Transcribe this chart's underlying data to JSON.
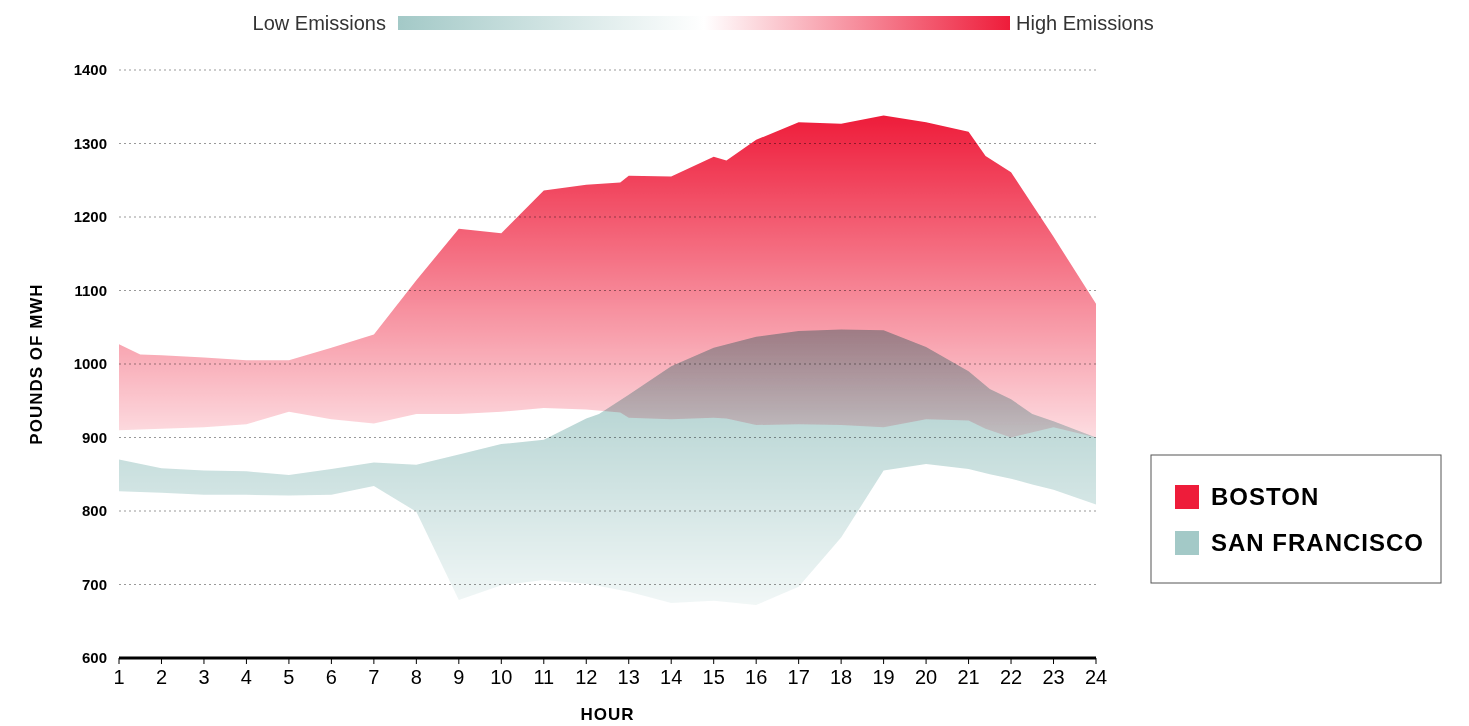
{
  "chart_data": {
    "type": "area",
    "xlabel": "HOUR",
    "ylabel": "POUNDS OF MWH",
    "xlim": [
      1,
      24
    ],
    "xticks": [
      1,
      2,
      3,
      4,
      5,
      6,
      7,
      8,
      9,
      10,
      11,
      12,
      13,
      14,
      15,
      16,
      17,
      18,
      19,
      20,
      21,
      22,
      23,
      24
    ],
    "ylim": [
      600,
      1400
    ],
    "yticks": [
      600,
      700,
      800,
      900,
      1000,
      1100,
      1200,
      1300,
      1400
    ],
    "grid": "y",
    "legend": "right",
    "annotations": [
      "Low Emissions",
      "High Emissions"
    ],
    "series": [
      {
        "name": "BOSTON",
        "color": "#ee1c3a",
        "x": [
          1,
          1.5,
          2,
          3,
          4,
          5,
          6,
          7,
          8,
          9,
          10,
          11,
          12,
          12.8,
          13,
          14,
          15,
          15.3,
          16,
          17,
          18,
          19,
          20,
          21,
          21.4,
          22,
          23,
          24
        ],
        "values": [
          null,
          null,
          null,
          null,
          null,
          null,
          null,
          null,
          null,
          null,
          null,
          null,
          null,
          null,
          null,
          null,
          null,
          null,
          null,
          null,
          null,
          null,
          null,
          null,
          null,
          null,
          null,
          null
        ],
        "upper": [
          1027,
          1013,
          1012,
          1009,
          1005,
          1005,
          1022,
          1040,
          1114,
          1184,
          1178,
          1236,
          1244,
          1247,
          1256,
          1255,
          1282,
          1277,
          1305,
          1329,
          1327,
          1338,
          1329,
          1316,
          1283,
          1261,
          1173,
          1082
        ],
        "lower": [
          910,
          911,
          912,
          914,
          918,
          935,
          925,
          919,
          932,
          932,
          935,
          940,
          938,
          934,
          927,
          925,
          927,
          926,
          917,
          918,
          917,
          914,
          925,
          923,
          912,
          900,
          914,
          900
        ]
      },
      {
        "name": "SAN FRANCISCO",
        "color": "#a3c9c7",
        "x": [
          1,
          2,
          3,
          4,
          5,
          6,
          7,
          8,
          9,
          10,
          11,
          12,
          12.3,
          13,
          14,
          15,
          16,
          17,
          18,
          19,
          20,
          21,
          21.5,
          22,
          22.5,
          23,
          24
        ],
        "values": [
          null,
          null,
          null,
          null,
          null,
          null,
          null,
          null,
          null,
          null,
          null,
          null,
          null,
          null,
          null,
          null,
          null,
          null,
          null,
          null,
          null,
          null,
          null,
          null,
          null,
          null,
          null
        ],
        "upper": [
          870,
          858,
          855,
          854,
          849,
          857,
          866,
          863,
          877,
          891,
          897,
          926,
          932,
          958,
          997,
          1022,
          1037,
          1045,
          1047,
          1046,
          1023,
          990,
          966,
          952,
          932,
          922,
          900
        ],
        "lower": [
          827,
          825,
          822,
          822,
          821,
          822,
          834,
          799,
          679,
          699,
          706,
          701,
          698,
          690,
          675,
          678,
          672,
          697,
          764,
          855,
          864,
          857,
          850,
          844,
          836,
          829,
          809
        ]
      }
    ]
  }
}
